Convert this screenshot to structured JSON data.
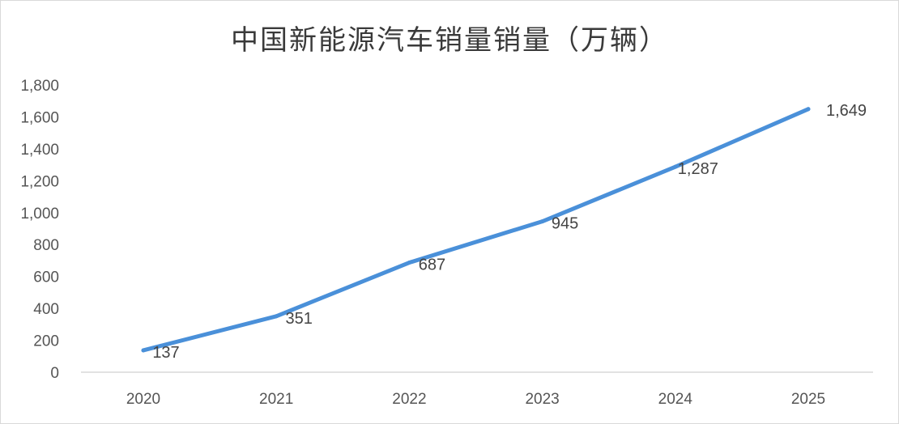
{
  "chart_data": {
    "type": "line",
    "title": "中国新能源汽车销量销量（万辆）",
    "xlabel": "",
    "ylabel": "",
    "categories": [
      "2020",
      "2021",
      "2022",
      "2023",
      "2024",
      "2025"
    ],
    "series": [
      {
        "values": [
          137,
          351,
          687,
          945,
          1287,
          1649
        ],
        "data_labels": [
          "137",
          "351",
          "687",
          "945",
          "1,287",
          "1,649"
        ]
      }
    ],
    "ylim": [
      0,
      1800
    ],
    "yticks": [
      0,
      200,
      400,
      600,
      800,
      1000,
      1200,
      1400,
      1600,
      1800
    ],
    "ytick_labels": [
      "0",
      "200",
      "400",
      "600",
      "800",
      "1,000",
      "1,200",
      "1,400",
      "1,600",
      "1,800"
    ],
    "grid": false,
    "legend": "none",
    "line_color": "#4a90d9",
    "axis_color": "#d9d9d9"
  }
}
